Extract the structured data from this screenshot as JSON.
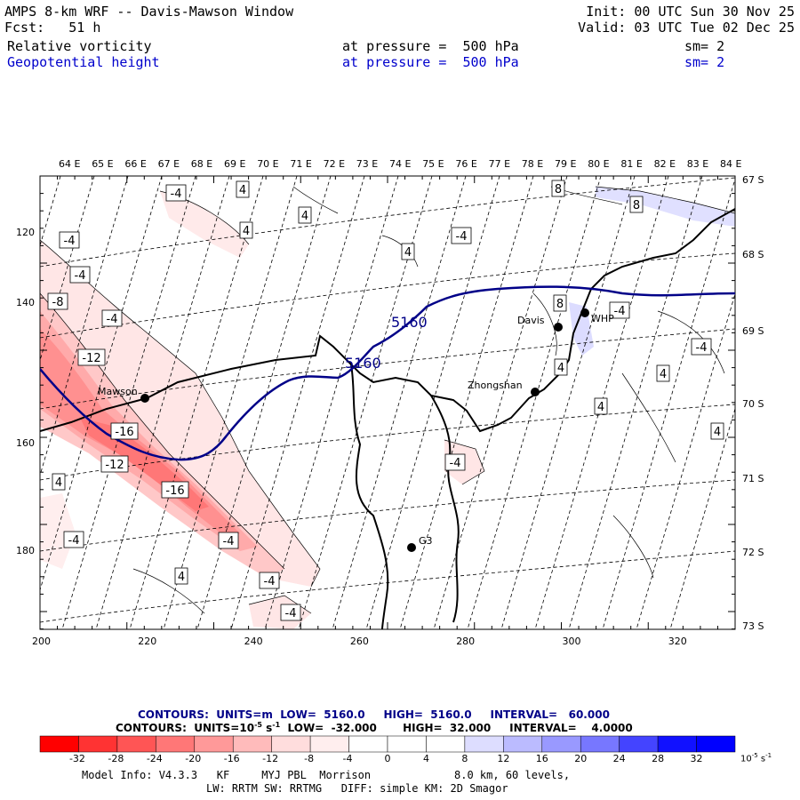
{
  "header": {
    "title": "AMPS 8-km WRF -- Davis-Mawson Window",
    "init": "Init: 00 UTC Sun 30 Nov 25",
    "fcst": "Fcst:   51 h",
    "valid": "Valid: 03 UTC Tue 02 Dec 25",
    "field1": {
      "name": "Relative vorticity",
      "pressure": "at pressure =  500 hPa",
      "sm": "sm= 2"
    },
    "field2": {
      "name": "Geopotential height",
      "pressure": "at pressure =  500 hPa",
      "sm": "sm= 2"
    }
  },
  "map": {
    "lon_labels": [
      "64 E",
      "65 E",
      "66 E",
      "67 E",
      "68 E",
      "69 E",
      "70 E",
      "71 E",
      "72 E",
      "73 E",
      "74 E",
      "75 E",
      "76 E",
      "77 E",
      "78 E",
      "79 E",
      "80 E",
      "81 E",
      "82 E",
      "83 E",
      "84 E"
    ],
    "lat_labels": [
      "67 S",
      "68 S",
      "69 S",
      "70 S",
      "71 S",
      "72 S",
      "73 S"
    ],
    "x_ticks": [
      "200",
      "220",
      "240",
      "260",
      "280",
      "300",
      "320"
    ],
    "y_ticks": [
      "120",
      "140",
      "160",
      "180"
    ],
    "stations": [
      {
        "name": "Mawson"
      },
      {
        "name": "Davis"
      },
      {
        "name": "WHP"
      },
      {
        "name": "Zhongshan"
      },
      {
        "name": "G3"
      }
    ],
    "height_labels": [
      "5160",
      "5160"
    ],
    "vort_labels": [
      "-4",
      "4",
      "4",
      "8",
      "8",
      "-4",
      "4",
      "-4",
      "-4",
      "4",
      "-8",
      "-4",
      "8",
      "-4",
      "-12",
      "-4",
      "4",
      "-16",
      "4",
      "-4",
      "4",
      "-12",
      "-16",
      "-4",
      "4",
      "4",
      "-4",
      "4",
      "-4",
      "-4"
    ]
  },
  "contour_info": {
    "line1": "CONTOURS:  UNITS=m  LOW=  5160.0     HIGH=  5160.0     INTERVAL=   60.000",
    "line2_a": "CONTOURS:  UNITS=10",
    "line2_exp": "-5",
    "line2_b": " s",
    "line2_exp2": "-1",
    "line2_c": "  LOW=  -32.000       HIGH=  32.000     INTERVAL=    4.0000"
  },
  "colorbar": {
    "labels": [
      "-32",
      "-28",
      "-24",
      "-20",
      "-16",
      "-12",
      "-8",
      "-4",
      "0",
      "4",
      "8",
      "12",
      "16",
      "20",
      "24",
      "28",
      "32"
    ],
    "units": "10",
    "units_exp": "-5",
    "units_s": "s",
    "units_exp2": "-1",
    "colors": [
      "#ff0000",
      "#ff3333",
      "#ff5555",
      "#ff7777",
      "#ff9999",
      "#ffbbbb",
      "#ffdddd",
      "#ffeeee",
      "#ffffff",
      "#ffffff",
      "#ffffff",
      "#ddddff",
      "#bbbbff",
      "#9999ff",
      "#7777ff",
      "#4444ff",
      "#1111ff",
      "#0000ff"
    ]
  },
  "footer": {
    "line1": "Model Info: V4.3.3   KF     MYJ PBL  Morrison             8.0 km, 60 levels,",
    "line2": "LW: RRTM SW: RRTMG   DIFF: simple KM: 2D Smagor"
  }
}
